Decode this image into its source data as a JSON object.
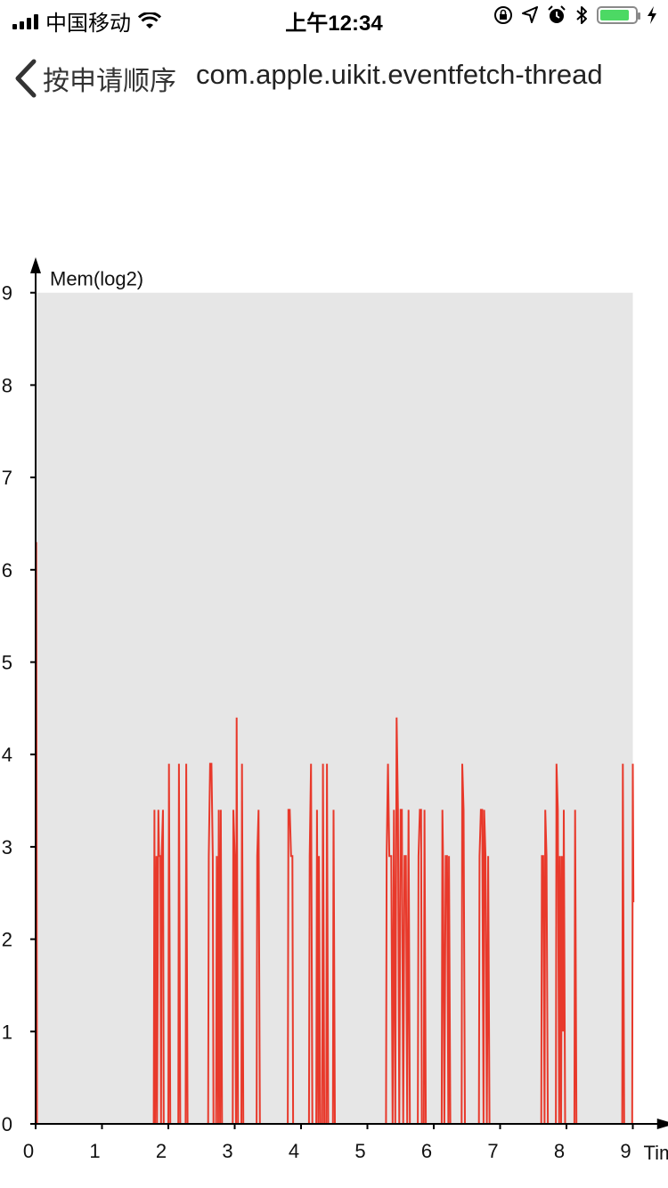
{
  "status_bar": {
    "carrier": "中国移动",
    "time": "上午12:34",
    "battery_level": 0.85,
    "icons": [
      "signal-icon",
      "wifi-icon",
      "orientation-lock-icon",
      "location-icon",
      "alarm-icon",
      "bluetooth-icon",
      "battery-icon",
      "charging-icon"
    ]
  },
  "nav": {
    "back_label": "按申请顺序",
    "title": "com.apple.uikit.eventfetch-thread"
  },
  "colors": {
    "plot_background": "#e6e6e6",
    "series": "#e8392b",
    "axis": "#000000"
  },
  "chart_data": {
    "type": "line",
    "title": "",
    "xlabel": "Tim",
    "ylabel": "Mem(log2)",
    "xlim": [
      0,
      9.5
    ],
    "ylim": [
      0,
      9.5
    ],
    "plot_area_ylim": [
      0,
      9
    ],
    "plot_area_xlim": [
      0,
      9
    ],
    "x_ticks": [
      0,
      1,
      2,
      3,
      4,
      5,
      6,
      7,
      8,
      9
    ],
    "y_ticks": [
      0,
      1,
      2,
      3,
      4,
      5,
      6,
      7,
      8,
      9
    ],
    "grid": false,
    "series": [
      {
        "values": [
          [
            0.0,
            0.0
          ],
          [
            0.01,
            6.3
          ],
          [
            0.02,
            0.0
          ],
          [
            1.78,
            0.0
          ],
          [
            1.79,
            3.4
          ],
          [
            1.8,
            0.0
          ],
          [
            1.82,
            2.9
          ],
          [
            1.83,
            0.0
          ],
          [
            1.85,
            3.4
          ],
          [
            1.86,
            2.9
          ],
          [
            1.88,
            2.9
          ],
          [
            1.89,
            0.0
          ],
          [
            1.9,
            2.9
          ],
          [
            1.92,
            3.4
          ],
          [
            1.93,
            0.0
          ],
          [
            2.0,
            0.0
          ],
          [
            2.01,
            3.9
          ],
          [
            2.03,
            0.0
          ],
          [
            2.15,
            0.0
          ],
          [
            2.16,
            3.9
          ],
          [
            2.18,
            0.0
          ],
          [
            2.26,
            0.0
          ],
          [
            2.27,
            3.9
          ],
          [
            2.29,
            0.0
          ],
          [
            2.6,
            0.0
          ],
          [
            2.61,
            2.9
          ],
          [
            2.63,
            3.9
          ],
          [
            2.65,
            3.9
          ],
          [
            2.67,
            2.9
          ],
          [
            2.68,
            0.0
          ],
          [
            2.72,
            0.0
          ],
          [
            2.73,
            2.9
          ],
          [
            2.75,
            0.0
          ],
          [
            2.76,
            3.4
          ],
          [
            2.78,
            0.0
          ],
          [
            2.79,
            3.4
          ],
          [
            2.81,
            0.0
          ],
          [
            2.97,
            0.0
          ],
          [
            2.98,
            3.4
          ],
          [
            3.0,
            2.9
          ],
          [
            3.02,
            0.0
          ],
          [
            3.03,
            4.4
          ],
          [
            3.05,
            0.0
          ],
          [
            3.1,
            0.0
          ],
          [
            3.11,
            3.9
          ],
          [
            3.13,
            0.0
          ],
          [
            3.33,
            0.0
          ],
          [
            3.34,
            2.9
          ],
          [
            3.36,
            3.4
          ],
          [
            3.38,
            0.0
          ],
          [
            3.8,
            0.0
          ],
          [
            3.81,
            3.4
          ],
          [
            3.83,
            3.4
          ],
          [
            3.85,
            2.9
          ],
          [
            3.87,
            2.9
          ],
          [
            3.88,
            0.0
          ],
          [
            4.12,
            0.0
          ],
          [
            4.13,
            2.9
          ],
          [
            4.15,
            3.9
          ],
          [
            4.17,
            0.0
          ],
          [
            4.23,
            0.0
          ],
          [
            4.24,
            3.4
          ],
          [
            4.26,
            0.0
          ],
          [
            4.27,
            2.9
          ],
          [
            4.29,
            0.0
          ],
          [
            4.32,
            0.0
          ],
          [
            4.33,
            3.9
          ],
          [
            4.35,
            0.0
          ],
          [
            4.38,
            0.0
          ],
          [
            4.39,
            3.9
          ],
          [
            4.41,
            0.0
          ],
          [
            4.48,
            0.0
          ],
          [
            4.49,
            3.4
          ],
          [
            4.51,
            0.0
          ],
          [
            5.28,
            0.0
          ],
          [
            5.29,
            2.9
          ],
          [
            5.31,
            3.9
          ],
          [
            5.33,
            2.9
          ],
          [
            5.36,
            2.9
          ],
          [
            5.38,
            0.0
          ],
          [
            5.4,
            3.4
          ],
          [
            5.42,
            0.0
          ],
          [
            5.44,
            4.4
          ],
          [
            5.46,
            3.4
          ],
          [
            5.48,
            0.0
          ],
          [
            5.5,
            3.4
          ],
          [
            5.52,
            3.4
          ],
          [
            5.54,
            0.0
          ],
          [
            5.56,
            2.9
          ],
          [
            5.58,
            2.9
          ],
          [
            5.6,
            0.0
          ],
          [
            5.62,
            3.4
          ],
          [
            5.64,
            0.0
          ],
          [
            5.76,
            0.0
          ],
          [
            5.77,
            2.9
          ],
          [
            5.79,
            3.4
          ],
          [
            5.81,
            3.4
          ],
          [
            5.82,
            0.0
          ],
          [
            5.85,
            0.0
          ],
          [
            5.86,
            3.4
          ],
          [
            5.88,
            0.0
          ],
          [
            6.12,
            0.0
          ],
          [
            6.13,
            3.4
          ],
          [
            6.14,
            2.9
          ],
          [
            6.16,
            0.0
          ],
          [
            6.18,
            2.9
          ],
          [
            6.2,
            2.9
          ],
          [
            6.22,
            0.0
          ],
          [
            6.23,
            2.9
          ],
          [
            6.25,
            0.0
          ],
          [
            6.42,
            0.0
          ],
          [
            6.43,
            3.9
          ],
          [
            6.45,
            3.4
          ],
          [
            6.47,
            0.0
          ],
          [
            6.68,
            0.0
          ],
          [
            6.69,
            2.9
          ],
          [
            6.71,
            3.4
          ],
          [
            6.73,
            3.4
          ],
          [
            6.75,
            0.0
          ],
          [
            6.76,
            3.4
          ],
          [
            6.78,
            2.9
          ],
          [
            6.8,
            0.0
          ],
          [
            6.82,
            2.9
          ],
          [
            6.84,
            0.0
          ],
          [
            7.62,
            0.0
          ],
          [
            7.63,
            2.9
          ],
          [
            7.65,
            2.9
          ],
          [
            7.67,
            0.0
          ],
          [
            7.68,
            3.4
          ],
          [
            7.7,
            2.9
          ],
          [
            7.72,
            0.0
          ],
          [
            7.84,
            0.0
          ],
          [
            7.85,
            3.9
          ],
          [
            7.87,
            3.4
          ],
          [
            7.89,
            0.0
          ],
          [
            7.9,
            2.9
          ],
          [
            7.92,
            0.0
          ],
          [
            7.93,
            2.9
          ],
          [
            7.95,
            1.0
          ],
          [
            7.96,
            3.4
          ],
          [
            7.98,
            0.0
          ],
          [
            8.12,
            0.0
          ],
          [
            8.13,
            3.4
          ],
          [
            8.15,
            0.0
          ],
          [
            8.84,
            0.0
          ],
          [
            8.85,
            3.9
          ],
          [
            8.87,
            0.0
          ],
          [
            8.99,
            0.0
          ],
          [
            9.0,
            3.9
          ],
          [
            9.01,
            2.4
          ]
        ]
      }
    ]
  }
}
